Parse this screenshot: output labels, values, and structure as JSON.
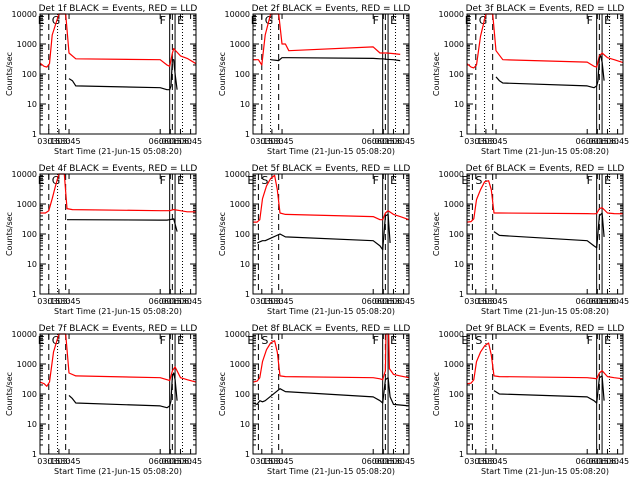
{
  "chart_data": [
    {
      "type": "line",
      "title": "Det 1f BLACK = Events, RED = LLD",
      "xlabel": "Start Time (21-Jun-15 05:08:20)",
      "ylabel": "Counts/sec",
      "yscale": "log",
      "ylim": [
        1,
        10000
      ],
      "xlim": [
        "03:02",
        "06:53"
      ],
      "x_ticks": [
        "03:15",
        "03:30",
        "03:45",
        "06:00",
        "06:15",
        "06:30",
        "06:45"
      ],
      "y_ticks": [
        "1",
        "10",
        "100",
        "1000",
        "10000"
      ],
      "grid": false,
      "flags": [
        "E",
        "G",
        "F",
        "E"
      ],
      "series": [
        {
          "color": "#ff0000",
          "x": [
            "03:02",
            "03:08",
            "03:12",
            "03:16",
            "03:20",
            "03:30",
            "03:40",
            "03:45",
            "03:55",
            "06:00",
            "06:10",
            "06:14",
            "06:18",
            "06:20",
            "06:30",
            "06:40",
            "06:53"
          ],
          "values": [
            230,
            180,
            170,
            220,
            2000,
            10000,
            10000,
            500,
            320,
            300,
            200,
            180,
            500,
            700,
            400,
            330,
            220
          ]
        },
        {
          "color": "#000000",
          "x": [
            "03:45",
            "03:50",
            "03:55",
            "06:00",
            "06:10",
            "06:14",
            "06:16",
            "06:18",
            "06:20",
            "06:22",
            "06:25"
          ],
          "values": [
            70,
            60,
            40,
            35,
            30,
            30,
            40,
            300,
            300,
            100,
            30
          ]
        }
      ],
      "markers": {
        "dashed": [
          "03:15",
          "03:40",
          "06:18"
        ],
        "dotted": [
          "03:28",
          "06:33"
        ],
        "solid": [
          "06:14",
          "06:22"
        ]
      }
    },
    {
      "type": "line",
      "title": "Det 2f BLACK = Events, RED = LLD",
      "xlabel": "Start Time (21-Jun-15 05:08:20)",
      "ylabel": "Counts/sec",
      "yscale": "log",
      "ylim": [
        1,
        10000
      ],
      "xlim": [
        "03:02",
        "06:53"
      ],
      "x_ticks": [
        "03:15",
        "03:30",
        "03:45",
        "06:00",
        "06:15",
        "06:30",
        "06:45"
      ],
      "y_ticks": [
        "1",
        "10",
        "100",
        "1000",
        "10000"
      ],
      "grid": false,
      "flags": [
        "E",
        "G",
        "F",
        "E"
      ],
      "series": [
        {
          "color": "#ff0000",
          "x": [
            "03:02",
            "03:10",
            "03:15",
            "03:20",
            "03:28",
            "03:40",
            "03:45",
            "03:50",
            "03:55",
            "06:00",
            "06:10",
            "06:14",
            "06:20",
            "06:30",
            "06:40"
          ],
          "values": [
            300,
            300,
            200,
            2000,
            10000,
            10000,
            1000,
            1000,
            600,
            800,
            500,
            500,
            500,
            480,
            450
          ]
        },
        {
          "color": "#000000",
          "x": [
            "03:28",
            "03:40",
            "03:45",
            "03:55",
            "06:00",
            "06:10",
            "06:14",
            "06:20",
            "06:30",
            "06:40"
          ],
          "values": [
            300,
            280,
            350,
            350,
            330,
            320,
            320,
            310,
            300,
            280
          ]
        }
      ],
      "markers": {
        "dashed": [
          "03:15",
          "03:40",
          "06:18"
        ],
        "dotted": [
          "03:28",
          "06:33"
        ],
        "solid": [
          "06:14",
          "06:22"
        ]
      }
    },
    {
      "type": "line",
      "title": "Det 3f BLACK = Events, RED = LLD",
      "xlabel": "Start Time (21-Jun-15 05:08:20)",
      "ylabel": "Counts/sec",
      "yscale": "log",
      "ylim": [
        1,
        10000
      ],
      "xlim": [
        "03:02",
        "06:53"
      ],
      "x_ticks": [
        "03:15",
        "03:30",
        "03:45",
        "06:00",
        "06:15",
        "06:30",
        "06:45"
      ],
      "y_ticks": [
        "1",
        "10",
        "100",
        "1000",
        "10000"
      ],
      "grid": false,
      "flags": [
        "E",
        "G",
        "F",
        "E"
      ],
      "series": [
        {
          "color": "#ff0000",
          "x": [
            "03:02",
            "03:08",
            "03:12",
            "03:16",
            "03:22",
            "03:30",
            "03:40",
            "03:45",
            "03:55",
            "06:00",
            "06:10",
            "06:14",
            "06:18",
            "06:22",
            "06:30",
            "06:40",
            "06:53"
          ],
          "values": [
            220,
            170,
            160,
            200,
            1800,
            10000,
            10000,
            600,
            300,
            250,
            180,
            170,
            400,
            500,
            350,
            300,
            240
          ]
        },
        {
          "color": "#000000",
          "x": [
            "03:45",
            "03:50",
            "03:55",
            "06:00",
            "06:10",
            "06:14",
            "06:16",
            "06:18",
            "06:20",
            "06:22",
            "06:25"
          ],
          "values": [
            80,
            60,
            50,
            40,
            35,
            40,
            60,
            350,
            400,
            250,
            60
          ]
        }
      ],
      "markers": {
        "dashed": [
          "03:15",
          "03:40",
          "06:18"
        ],
        "dotted": [
          "03:28",
          "06:33"
        ],
        "solid": [
          "06:14",
          "06:22"
        ]
      }
    },
    {
      "type": "line",
      "title": "Det 4f BLACK = Events, RED = LLD",
      "xlabel": "Start Time (21-Jun-15 05:08:20)",
      "ylabel": "Counts/sec",
      "yscale": "log",
      "ylim": [
        1,
        10000
      ],
      "xlim": [
        "03:02",
        "06:53"
      ],
      "x_ticks": [
        "03:15",
        "03:30",
        "03:45",
        "06:00",
        "06:15",
        "06:30",
        "06:45"
      ],
      "y_ticks": [
        "1",
        "10",
        "100",
        "1000",
        "10000"
      ],
      "grid": false,
      "flags": [
        "E",
        "G",
        "F",
        "E"
      ],
      "series": [
        {
          "color": "#ff0000",
          "x": [
            "03:02",
            "03:10",
            "03:15",
            "03:20",
            "03:25",
            "03:30",
            "03:38",
            "03:42",
            "03:50",
            "06:00",
            "06:10",
            "06:14",
            "06:20",
            "06:30",
            "06:40",
            "06:53"
          ],
          "values": [
            500,
            500,
            600,
            1500,
            4000,
            10000,
            10000,
            700,
            650,
            600,
            600,
            600,
            650,
            600,
            550,
            550
          ]
        },
        {
          "color": "#000000",
          "x": [
            "03:42",
            "03:50",
            "06:00",
            "06:10",
            "06:14",
            "06:20",
            "06:25"
          ],
          "values": [
            300,
            300,
            290,
            290,
            300,
            320,
            120
          ]
        }
      ],
      "markers": {
        "dashed": [
          "03:15",
          "03:40",
          "06:18"
        ],
        "dotted": [
          "03:28",
          "06:33"
        ],
        "solid": [
          "06:14",
          "06:22"
        ]
      }
    },
    {
      "type": "line",
      "title": "Det 5f BLACK = Events, RED = LLD",
      "xlabel": "Start Time (21-Jun-15 05:08:20)",
      "ylabel": "Counts/sec",
      "yscale": "log",
      "ylim": [
        1,
        10000
      ],
      "xlim": [
        "03:02",
        "06:53"
      ],
      "x_ticks": [
        "03:15",
        "03:30",
        "03:45",
        "06:00",
        "06:15",
        "06:30",
        "06:45"
      ],
      "y_ticks": [
        "1",
        "10",
        "100",
        "1000",
        "10000"
      ],
      "grid": false,
      "flags": [
        "E",
        "S",
        "F",
        "E"
      ],
      "series": [
        {
          "color": "#ff0000",
          "x": [
            "03:02",
            "03:08",
            "03:12",
            "03:16",
            "03:22",
            "03:28",
            "03:34",
            "03:38",
            "03:42",
            "03:50",
            "06:00",
            "06:10",
            "06:14",
            "06:18",
            "06:22",
            "06:30",
            "06:40",
            "06:53"
          ],
          "values": [
            250,
            250,
            300,
            1500,
            4000,
            7000,
            9000,
            3000,
            500,
            450,
            380,
            300,
            300,
            500,
            600,
            450,
            380,
            300
          ]
        },
        {
          "color": "#000000",
          "x": [
            "03:08",
            "03:12",
            "03:16",
            "03:20",
            "03:42",
            "03:50",
            "06:00",
            "06:10",
            "06:14",
            "06:18",
            "06:22",
            "06:25"
          ],
          "values": [
            50,
            55,
            60,
            60,
            100,
            80,
            60,
            40,
            30,
            400,
            450,
            50
          ]
        }
      ],
      "markers": {
        "dashed": [
          "03:10",
          "03:40",
          "06:18"
        ],
        "dotted": [
          "03:30",
          "06:33"
        ],
        "solid": [
          "06:14",
          "06:22"
        ]
      }
    },
    {
      "type": "line",
      "title": "Det 6f BLACK = Events, RED = LLD",
      "xlabel": "Start Time (21-Jun-15 05:08:20)",
      "ylabel": "Counts/sec",
      "yscale": "log",
      "ylim": [
        1,
        10000
      ],
      "xlim": [
        "03:02",
        "06:53"
      ],
      "x_ticks": [
        "03:15",
        "03:30",
        "03:45",
        "06:00",
        "06:15",
        "06:30",
        "06:45"
      ],
      "y_ticks": [
        "1",
        "10",
        "100",
        "1000",
        "10000"
      ],
      "grid": false,
      "flags": [
        "E",
        "S",
        "F",
        "E"
      ],
      "series": [
        {
          "color": "#ff0000",
          "x": [
            "03:02",
            "03:08",
            "03:12",
            "03:16",
            "03:22",
            "03:28",
            "03:34",
            "03:38",
            "03:42",
            "03:50",
            "06:00",
            "06:10",
            "06:14",
            "06:18",
            "06:22",
            "06:30",
            "06:40",
            "06:53"
          ],
          "values": [
            250,
            260,
            320,
            1400,
            3000,
            5500,
            6000,
            3000,
            500,
            500,
            480,
            470,
            480,
            700,
            750,
            500,
            480,
            470
          ]
        },
        {
          "color": "#000000",
          "x": [
            "03:42",
            "03:50",
            "06:00",
            "06:10",
            "06:14",
            "06:18",
            "06:22",
            "06:25"
          ],
          "values": [
            120,
            90,
            60,
            40,
            35,
            400,
            500,
            80
          ]
        }
      ],
      "markers": {
        "dashed": [
          "03:10",
          "03:40",
          "06:18"
        ],
        "dotted": [
          "03:30",
          "06:33"
        ],
        "solid": [
          "06:14",
          "06:22"
        ]
      }
    },
    {
      "type": "line",
      "title": "Det 7f BLACK = Events, RED = LLD",
      "xlabel": "Start Time (21-Jun-15 05:08:20)",
      "ylabel": "Counts/sec",
      "yscale": "log",
      "ylim": [
        1,
        10000
      ],
      "xlim": [
        "03:02",
        "06:53"
      ],
      "x_ticks": [
        "03:15",
        "03:30",
        "03:45",
        "06:00",
        "06:15",
        "06:30",
        "06:45"
      ],
      "y_ticks": [
        "1",
        "10",
        "100",
        "1000",
        "10000"
      ],
      "grid": false,
      "flags": [
        "E",
        "G",
        "F",
        "E"
      ],
      "series": [
        {
          "color": "#ff0000",
          "x": [
            "03:02",
            "03:08",
            "03:12",
            "03:16",
            "03:22",
            "03:30",
            "03:40",
            "03:45",
            "03:55",
            "06:00",
            "06:10",
            "06:14",
            "06:18",
            "06:22",
            "06:30",
            "06:40",
            "06:53"
          ],
          "values": [
            250,
            220,
            180,
            250,
            2500,
            10000,
            10000,
            500,
            400,
            350,
            300,
            280,
            600,
            800,
            350,
            300,
            250
          ]
        },
        {
          "color": "#000000",
          "x": [
            "03:45",
            "03:50",
            "03:55",
            "06:00",
            "06:10",
            "06:14",
            "06:16",
            "06:18",
            "06:20",
            "06:22",
            "06:25"
          ],
          "values": [
            90,
            70,
            50,
            40,
            35,
            40,
            60,
            400,
            500,
            300,
            60
          ]
        }
      ],
      "markers": {
        "dashed": [
          "03:15",
          "03:40",
          "06:18"
        ],
        "dotted": [
          "03:28",
          "06:33"
        ],
        "solid": [
          "06:14",
          "06:22"
        ]
      }
    },
    {
      "type": "line",
      "title": "Det 8f BLACK = Events, RED = LLD",
      "xlabel": "Start Time (21-Jun-15 05:08:20)",
      "ylabel": "Counts/sec",
      "yscale": "log",
      "ylim": [
        1,
        10000
      ],
      "xlim": [
        "03:02",
        "06:53"
      ],
      "x_ticks": [
        "03:15",
        "03:30",
        "03:45",
        "06:00",
        "06:15",
        "06:30",
        "06:45"
      ],
      "y_ticks": [
        "1",
        "10",
        "100",
        "1000",
        "10000"
      ],
      "grid": false,
      "flags": [
        "E",
        "S",
        "F",
        "E"
      ],
      "series": [
        {
          "color": "#ff0000",
          "x": [
            "03:02",
            "03:08",
            "03:12",
            "03:16",
            "03:22",
            "03:28",
            "03:34",
            "03:38",
            "03:42",
            "03:50",
            "06:00",
            "06:10",
            "06:14",
            "06:18",
            "06:19",
            "06:23",
            "06:24",
            "06:30",
            "06:40",
            "06:53"
          ],
          "values": [
            250,
            270,
            350,
            1200,
            3000,
            5000,
            6000,
            2500,
            400,
            380,
            350,
            320,
            300,
            600,
            10000,
            10000,
            700,
            450,
            400,
            350
          ]
        },
        {
          "color": "#000000",
          "x": [
            "03:02",
            "03:08",
            "03:12",
            "03:16",
            "03:20",
            "03:42",
            "03:50",
            "06:00",
            "06:10",
            "06:14",
            "06:18",
            "06:22",
            "06:25",
            "06:30",
            "06:53"
          ],
          "values": [
            50,
            45,
            60,
            55,
            60,
            150,
            120,
            80,
            60,
            50,
            300,
            350,
            80,
            45,
            40
          ]
        }
      ],
      "markers": {
        "dashed": [
          "03:10",
          "03:40",
          "06:18"
        ],
        "dotted": [
          "03:30",
          "06:33"
        ],
        "solid": [
          "06:14",
          "06:22"
        ]
      }
    },
    {
      "type": "line",
      "title": "Det 9f BLACK = Events, RED = LLD",
      "xlabel": "Start Time (21-Jun-15 05:08:20)",
      "ylabel": "Counts/sec",
      "yscale": "log",
      "ylim": [
        1,
        10000
      ],
      "xlim": [
        "03:02",
        "06:53"
      ],
      "x_ticks": [
        "03:15",
        "03:30",
        "03:45",
        "06:00",
        "06:15",
        "06:30",
        "06:45"
      ],
      "y_ticks": [
        "1",
        "10",
        "100",
        "1000",
        "10000"
      ],
      "grid": false,
      "flags": [
        "E",
        "S",
        "F",
        "E"
      ],
      "series": [
        {
          "color": "#ff0000",
          "x": [
            "03:02",
            "03:08",
            "03:12",
            "03:16",
            "03:22",
            "03:28",
            "03:34",
            "03:38",
            "03:42",
            "03:50",
            "06:00",
            "06:10",
            "06:14",
            "06:18",
            "06:22",
            "06:30",
            "06:40",
            "06:53"
          ],
          "values": [
            220,
            230,
            300,
            1200,
            2500,
            4000,
            5000,
            2000,
            400,
            380,
            350,
            330,
            320,
            500,
            600,
            380,
            350,
            320
          ]
        },
        {
          "color": "#000000",
          "x": [
            "03:42",
            "03:50",
            "06:00",
            "06:10",
            "06:14",
            "06:18",
            "06:22",
            "06:25"
          ],
          "values": [
            130,
            100,
            80,
            60,
            50,
            350,
            400,
            60
          ]
        }
      ],
      "markers": {
        "dashed": [
          "03:10",
          "03:40",
          "06:18"
        ],
        "dotted": [
          "03:30",
          "06:33"
        ],
        "solid": [
          "06:14",
          "06:22"
        ]
      }
    }
  ]
}
